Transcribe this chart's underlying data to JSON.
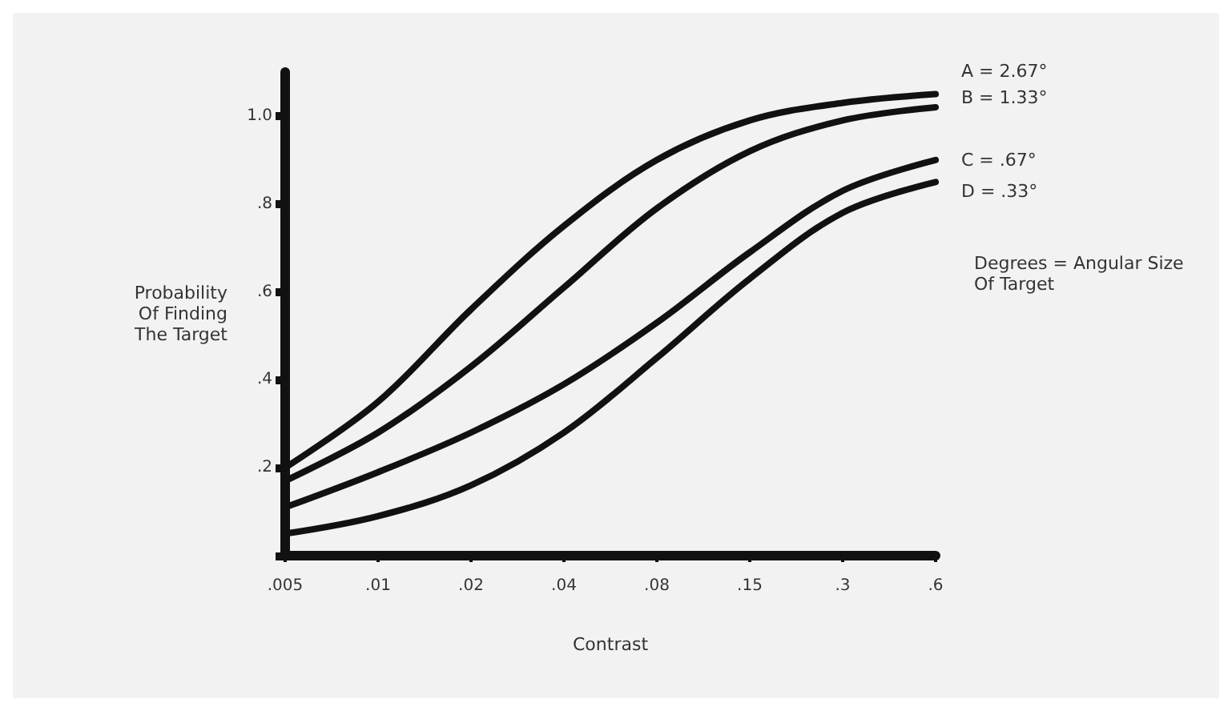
{
  "chart_data": {
    "type": "line",
    "xlabel": "Contrast",
    "ylabel": "Probability\nOf Finding\nThe Target",
    "categories": [
      ".005",
      ".01",
      ".02",
      ".04",
      ".08",
      ".15",
      ".3",
      ".6"
    ],
    "series": [
      {
        "name": "A = 2.67°",
        "color": "#111111",
        "values": [
          0.2,
          0.35,
          0.56,
          0.75,
          0.9,
          0.99,
          1.03,
          1.05
        ]
      },
      {
        "name": "B = 1.33°",
        "color": "#111111",
        "values": [
          0.17,
          0.28,
          0.43,
          0.61,
          0.79,
          0.92,
          0.99,
          1.02
        ]
      },
      {
        "name": "C = .67°",
        "color": "#111111",
        "values": [
          0.11,
          0.19,
          0.28,
          0.39,
          0.53,
          0.69,
          0.83,
          0.9
        ]
      },
      {
        "name": "D = .33°",
        "color": "#111111",
        "values": [
          0.05,
          0.09,
          0.16,
          0.28,
          0.45,
          0.63,
          0.78,
          0.85
        ]
      }
    ],
    "ylim": [
      0,
      1.1
    ],
    "yticks": [
      {
        "value": 0,
        "label": null
      },
      {
        "value": 0.2,
        "label": ".2"
      },
      {
        "value": 0.4,
        "label": ".4"
      },
      {
        "value": 0.6,
        "label": ".6"
      },
      {
        "value": 0.8,
        "label": ".8"
      },
      {
        "value": 1.0,
        "label": "1.0"
      }
    ],
    "annotations": [
      "Degrees = Angular Size\nOf Target"
    ],
    "legend": false,
    "grid": false,
    "marker": "none",
    "line_style": "solid"
  }
}
